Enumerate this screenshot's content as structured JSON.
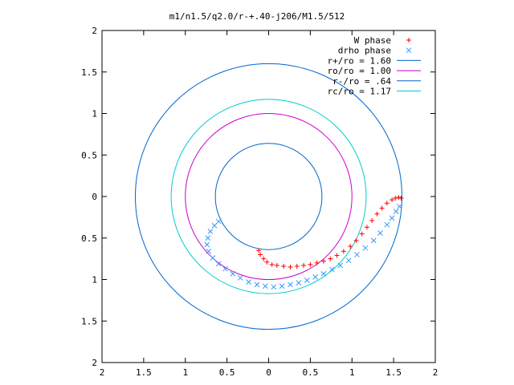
{
  "chart_data": {
    "type": "scatter",
    "title": "m1/n1.5/q2.0/r-+.40-j206/M1.5/512",
    "xlabel": "",
    "ylabel": "",
    "xlim": [
      -2,
      2
    ],
    "ylim": [
      -2,
      2
    ],
    "x_ticks": [
      {
        "value": -2,
        "label": "2"
      },
      {
        "value": -1.5,
        "label": "1.5"
      },
      {
        "value": -1,
        "label": "1"
      },
      {
        "value": -0.5,
        "label": "0.5"
      },
      {
        "value": 0,
        "label": "0"
      },
      {
        "value": 0.5,
        "label": "0.5"
      },
      {
        "value": 1,
        "label": "1"
      },
      {
        "value": 1.5,
        "label": "1.5"
      },
      {
        "value": 2,
        "label": "2"
      }
    ],
    "y_ticks": [
      {
        "value": 2,
        "label": "2"
      },
      {
        "value": 1.5,
        "label": "1.5"
      },
      {
        "value": 1,
        "label": "1"
      },
      {
        "value": 0.5,
        "label": "0.5"
      },
      {
        "value": 0,
        "label": "0"
      },
      {
        "value": -0.5,
        "label": "0.5"
      },
      {
        "value": -1,
        "label": "1"
      },
      {
        "value": -1.5,
        "label": "1.5"
      },
      {
        "value": -2,
        "label": "2"
      }
    ],
    "grid": false,
    "legend_position": "top-right",
    "legend": [
      {
        "label": "W phase",
        "kind": "marker",
        "marker": "plus",
        "color": "#ff0000"
      },
      {
        "label": "drho phase",
        "kind": "marker",
        "marker": "cross",
        "color": "#3399ff"
      },
      {
        "label": "r+/ro = 1.60",
        "kind": "line",
        "color": "#0066cc"
      },
      {
        "label": "ro/ro = 1.00",
        "kind": "line",
        "color": "#cc00cc"
      },
      {
        "label": "r-/ro = .64",
        "kind": "line",
        "color": "#0066cc"
      },
      {
        "label": "rc/ro = 1.17",
        "kind": "line",
        "color": "#00cccc"
      }
    ],
    "circles": [
      {
        "radius": 1.6,
        "color": "#0066cc"
      },
      {
        "radius": 1.0,
        "color": "#cc00cc"
      },
      {
        "radius": 0.64,
        "color": "#0066cc"
      },
      {
        "radius": 1.17,
        "color": "#00cccc"
      }
    ],
    "series": [
      {
        "name": "W phase",
        "marker": "plus",
        "color": "#ff0000",
        "points": [
          [
            -0.12,
            -0.65
          ],
          [
            -0.1,
            -0.7
          ],
          [
            -0.06,
            -0.75
          ],
          [
            -0.02,
            -0.79
          ],
          [
            0.04,
            -0.82
          ],
          [
            0.1,
            -0.83
          ],
          [
            0.18,
            -0.84
          ],
          [
            0.26,
            -0.85
          ],
          [
            0.34,
            -0.84
          ],
          [
            0.42,
            -0.83
          ],
          [
            0.5,
            -0.82
          ],
          [
            0.58,
            -0.8
          ],
          [
            0.66,
            -0.78
          ],
          [
            0.74,
            -0.75
          ],
          [
            0.82,
            -0.71
          ],
          [
            0.9,
            -0.66
          ],
          [
            0.98,
            -0.6
          ],
          [
            1.05,
            -0.53
          ],
          [
            1.12,
            -0.45
          ],
          [
            1.18,
            -0.37
          ],
          [
            1.24,
            -0.29
          ],
          [
            1.3,
            -0.21
          ],
          [
            1.36,
            -0.14
          ],
          [
            1.42,
            -0.08
          ],
          [
            1.48,
            -0.04
          ],
          [
            1.52,
            -0.02
          ],
          [
            1.56,
            -0.01
          ],
          [
            1.59,
            -0.02
          ]
        ]
      },
      {
        "name": "drho phase",
        "marker": "cross",
        "color": "#3399ff",
        "points": [
          [
            -0.6,
            -0.3
          ],
          [
            -0.65,
            -0.35
          ],
          [
            -0.7,
            -0.42
          ],
          [
            -0.73,
            -0.5
          ],
          [
            -0.74,
            -0.58
          ],
          [
            -0.72,
            -0.66
          ],
          [
            -0.67,
            -0.74
          ],
          [
            -0.6,
            -0.81
          ],
          [
            -0.52,
            -0.87
          ],
          [
            -0.43,
            -0.93
          ],
          [
            -0.34,
            -0.98
          ],
          [
            -0.24,
            -1.03
          ],
          [
            -0.14,
            -1.06
          ],
          [
            -0.04,
            -1.08
          ],
          [
            0.06,
            -1.09
          ],
          [
            0.16,
            -1.08
          ],
          [
            0.26,
            -1.06
          ],
          [
            0.36,
            -1.04
          ],
          [
            0.46,
            -1.01
          ],
          [
            0.56,
            -0.97
          ],
          [
            0.66,
            -0.93
          ],
          [
            0.76,
            -0.88
          ],
          [
            0.86,
            -0.83
          ],
          [
            0.96,
            -0.77
          ],
          [
            1.06,
            -0.7
          ],
          [
            1.16,
            -0.62
          ],
          [
            1.26,
            -0.53
          ],
          [
            1.34,
            -0.44
          ],
          [
            1.42,
            -0.34
          ],
          [
            1.48,
            -0.26
          ],
          [
            1.53,
            -0.18
          ],
          [
            1.57,
            -0.12
          ]
        ]
      }
    ]
  }
}
